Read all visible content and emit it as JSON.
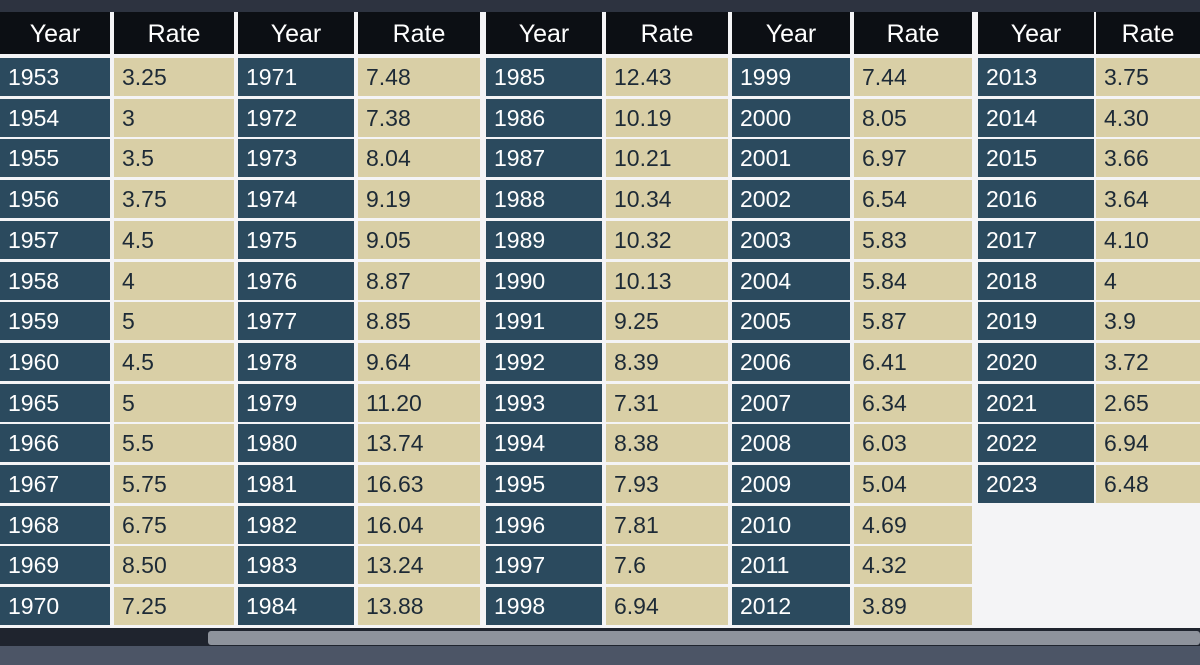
{
  "headers": {
    "year": "Year",
    "rate": "Rate"
  },
  "colors": {
    "header_bg": "#0c0f14",
    "year_bg": "#2b4a5e",
    "rate_bg": "#d9cfa6"
  },
  "table": {
    "groups": [
      {
        "rows": [
          {
            "year": "1953",
            "rate": "3.25"
          },
          {
            "year": "1954",
            "rate": "3"
          },
          {
            "year": "1955",
            "rate": "3.5"
          },
          {
            "year": "1956",
            "rate": "3.75"
          },
          {
            "year": "1957",
            "rate": "4.5"
          },
          {
            "year": "1958",
            "rate": "4"
          },
          {
            "year": "1959",
            "rate": "5"
          },
          {
            "year": "1960",
            "rate": "4.5"
          },
          {
            "year": "1965",
            "rate": "5"
          },
          {
            "year": "1966",
            "rate": "5.5"
          },
          {
            "year": "1967",
            "rate": "5.75"
          },
          {
            "year": "1968",
            "rate": "6.75"
          },
          {
            "year": "1969",
            "rate": "8.50"
          },
          {
            "year": "1970",
            "rate": "7.25"
          }
        ]
      },
      {
        "rows": [
          {
            "year": "1971",
            "rate": "7.48"
          },
          {
            "year": "1972",
            "rate": "7.38"
          },
          {
            "year": "1973",
            "rate": "8.04"
          },
          {
            "year": "1974",
            "rate": "9.19"
          },
          {
            "year": "1975",
            "rate": "9.05"
          },
          {
            "year": "1976",
            "rate": "8.87"
          },
          {
            "year": "1977",
            "rate": "8.85"
          },
          {
            "year": "1978",
            "rate": "9.64"
          },
          {
            "year": "1979",
            "rate": "11.20"
          },
          {
            "year": "1980",
            "rate": "13.74"
          },
          {
            "year": "1981",
            "rate": "16.63"
          },
          {
            "year": "1982",
            "rate": "16.04"
          },
          {
            "year": "1983",
            "rate": "13.24"
          },
          {
            "year": "1984",
            "rate": "13.88"
          }
        ]
      },
      {
        "rows": [
          {
            "year": "1985",
            "rate": "12.43"
          },
          {
            "year": "1986",
            "rate": "10.19"
          },
          {
            "year": "1987",
            "rate": "10.21"
          },
          {
            "year": "1988",
            "rate": "10.34"
          },
          {
            "year": "1989",
            "rate": "10.32"
          },
          {
            "year": "1990",
            "rate": "10.13"
          },
          {
            "year": "1991",
            "rate": "9.25"
          },
          {
            "year": "1992",
            "rate": "8.39"
          },
          {
            "year": "1993",
            "rate": "7.31"
          },
          {
            "year": "1994",
            "rate": "8.38"
          },
          {
            "year": "1995",
            "rate": "7.93"
          },
          {
            "year": "1996",
            "rate": "7.81"
          },
          {
            "year": "1997",
            "rate": "7.6"
          },
          {
            "year": "1998",
            "rate": "6.94"
          }
        ]
      },
      {
        "rows": [
          {
            "year": "1999",
            "rate": "7.44"
          },
          {
            "year": "2000",
            "rate": "8.05"
          },
          {
            "year": "2001",
            "rate": "6.97"
          },
          {
            "year": "2002",
            "rate": "6.54"
          },
          {
            "year": "2003",
            "rate": "5.83"
          },
          {
            "year": "2004",
            "rate": "5.84"
          },
          {
            "year": "2005",
            "rate": "5.87"
          },
          {
            "year": "2006",
            "rate": "6.41"
          },
          {
            "year": "2007",
            "rate": "6.34"
          },
          {
            "year": "2008",
            "rate": "6.03"
          },
          {
            "year": "2009",
            "rate": "5.04"
          },
          {
            "year": "2010",
            "rate": "4.69"
          },
          {
            "year": "2011",
            "rate": "4.32"
          },
          {
            "year": "2012",
            "rate": "3.89"
          }
        ]
      },
      {
        "rows": [
          {
            "year": "2013",
            "rate": "3.75"
          },
          {
            "year": "2014",
            "rate": "4.30"
          },
          {
            "year": "2015",
            "rate": "3.66"
          },
          {
            "year": "2016",
            "rate": "3.64"
          },
          {
            "year": "2017",
            "rate": "4.10"
          },
          {
            "year": "2018",
            "rate": "4"
          },
          {
            "year": "2019",
            "rate": "3.9"
          },
          {
            "year": "2020",
            "rate": "3.72"
          },
          {
            "year": "2021",
            "rate": "2.65"
          },
          {
            "year": "2022",
            "rate": "6.94"
          },
          {
            "year": "2023",
            "rate": "6.48"
          }
        ]
      }
    ]
  }
}
